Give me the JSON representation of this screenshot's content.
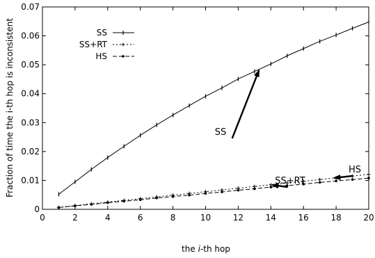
{
  "chart_data": {
    "type": "line",
    "title": "",
    "xlabel_parts": [
      "the ",
      "i",
      "-th hop"
    ],
    "ylabel": "Fraction of time the i-th hop is inconsistent",
    "xlim": [
      0,
      20
    ],
    "ylim": [
      0,
      0.07
    ],
    "xticks": [
      "0",
      "2",
      "4",
      "6",
      "8",
      "10",
      "12",
      "14",
      "16",
      "18",
      "20"
    ],
    "yticks": [
      "0",
      "0.01",
      "0.02",
      "0.03",
      "0.04",
      "0.05",
      "0.06",
      "0.07"
    ],
    "grid": false,
    "legend_position": "top-left",
    "x": [
      1,
      2,
      3,
      4,
      5,
      6,
      7,
      8,
      9,
      10,
      11,
      12,
      13,
      14,
      15,
      16,
      17,
      18,
      19,
      20
    ],
    "series": [
      {
        "name": "SS",
        "line_style": "solid",
        "marker": "tick",
        "values": [
          0.0052,
          0.0095,
          0.0138,
          0.0179,
          0.0218,
          0.0256,
          0.0292,
          0.0326,
          0.0359,
          0.0391,
          0.042,
          0.0451,
          0.0477,
          0.0503,
          0.0531,
          0.0556,
          0.0581,
          0.0603,
          0.0626,
          0.0648
        ]
      },
      {
        "name": "SS+RT",
        "line_style": "dotted",
        "marker": "plus",
        "values": [
          0.0007,
          0.0013,
          0.0019,
          0.0025,
          0.0031,
          0.0037,
          0.0043,
          0.0049,
          0.0055,
          0.0061,
          0.0067,
          0.0073,
          0.0079,
          0.0085,
          0.0091,
          0.0097,
          0.0103,
          0.0109,
          0.0115,
          0.0121
        ]
      },
      {
        "name": "HS",
        "line_style": "dashed",
        "marker": "dot",
        "values": [
          0.0006,
          0.0012,
          0.0017,
          0.0023,
          0.0028,
          0.0033,
          0.0039,
          0.0044,
          0.0049,
          0.0055,
          0.006,
          0.0066,
          0.0071,
          0.0077,
          0.0082,
          0.0087,
          0.0093,
          0.0098,
          0.0103,
          0.0108
        ]
      }
    ],
    "annotations": [
      {
        "text": "SS",
        "series": "SS",
        "target_x": 13.3
      },
      {
        "text": "SS+RT",
        "series": "SS+RT",
        "target_x": 14
      },
      {
        "text": "HS",
        "series": "SS+RT",
        "target_x": 17.8
      }
    ]
  }
}
